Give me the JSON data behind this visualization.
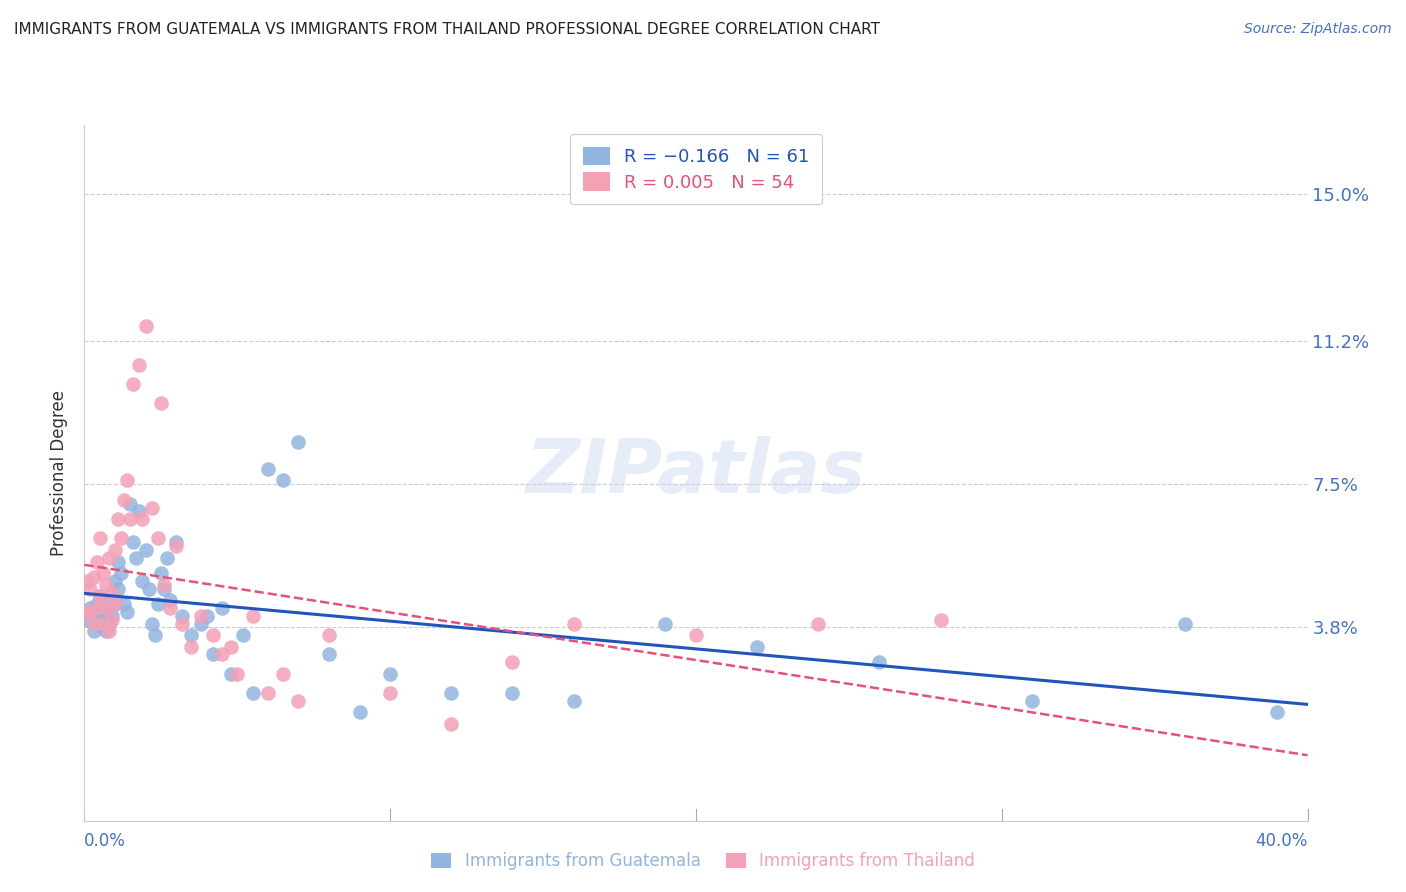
{
  "title": "IMMIGRANTS FROM GUATEMALA VS IMMIGRANTS FROM THAILAND PROFESSIONAL DEGREE CORRELATION CHART",
  "source": "Source: ZipAtlas.com",
  "ylabel": "Professional Degree",
  "ytick_labels": [
    "15.0%",
    "11.2%",
    "7.5%",
    "3.8%"
  ],
  "ytick_values": [
    0.15,
    0.112,
    0.075,
    0.038
  ],
  "xlim": [
    0.0,
    0.4
  ],
  "ylim": [
    -0.012,
    0.168
  ],
  "color_guatemala": "#92b4e0",
  "color_thailand": "#f4a0b5",
  "trendline_guatemala_color": "#2255bb",
  "trendline_thailand_color": "#e8507a",
  "watermark": "ZIPatlas",
  "guatemala_points_x": [
    0.001,
    0.002,
    0.003,
    0.003,
    0.004,
    0.004,
    0.005,
    0.005,
    0.006,
    0.006,
    0.007,
    0.007,
    0.007,
    0.008,
    0.009,
    0.01,
    0.01,
    0.011,
    0.011,
    0.012,
    0.013,
    0.014,
    0.015,
    0.016,
    0.017,
    0.018,
    0.019,
    0.02,
    0.021,
    0.022,
    0.023,
    0.024,
    0.025,
    0.026,
    0.027,
    0.028,
    0.03,
    0.032,
    0.035,
    0.038,
    0.04,
    0.042,
    0.045,
    0.048,
    0.052,
    0.055,
    0.06,
    0.065,
    0.07,
    0.08,
    0.09,
    0.1,
    0.12,
    0.14,
    0.16,
    0.19,
    0.22,
    0.26,
    0.31,
    0.36,
    0.39
  ],
  "guatemala_points_y": [
    0.04,
    0.043,
    0.041,
    0.037,
    0.044,
    0.039,
    0.046,
    0.041,
    0.043,
    0.038,
    0.045,
    0.041,
    0.037,
    0.039,
    0.041,
    0.05,
    0.044,
    0.055,
    0.048,
    0.052,
    0.044,
    0.042,
    0.07,
    0.06,
    0.056,
    0.068,
    0.05,
    0.058,
    0.048,
    0.039,
    0.036,
    0.044,
    0.052,
    0.048,
    0.056,
    0.045,
    0.06,
    0.041,
    0.036,
    0.039,
    0.041,
    0.031,
    0.043,
    0.026,
    0.036,
    0.021,
    0.079,
    0.076,
    0.086,
    0.031,
    0.016,
    0.026,
    0.021,
    0.021,
    0.019,
    0.039,
    0.033,
    0.029,
    0.019,
    0.039,
    0.016
  ],
  "thailand_points_x": [
    0.001,
    0.001,
    0.002,
    0.002,
    0.003,
    0.003,
    0.004,
    0.004,
    0.005,
    0.005,
    0.006,
    0.006,
    0.007,
    0.007,
    0.008,
    0.008,
    0.009,
    0.009,
    0.01,
    0.01,
    0.011,
    0.012,
    0.013,
    0.014,
    0.015,
    0.016,
    0.018,
    0.019,
    0.02,
    0.022,
    0.024,
    0.025,
    0.026,
    0.028,
    0.03,
    0.032,
    0.035,
    0.038,
    0.042,
    0.045,
    0.048,
    0.05,
    0.055,
    0.06,
    0.065,
    0.07,
    0.08,
    0.1,
    0.12,
    0.14,
    0.16,
    0.2,
    0.24,
    0.28
  ],
  "thailand_points_y": [
    0.042,
    0.05,
    0.048,
    0.042,
    0.051,
    0.039,
    0.055,
    0.043,
    0.061,
    0.046,
    0.052,
    0.039,
    0.049,
    0.043,
    0.037,
    0.056,
    0.047,
    0.04,
    0.058,
    0.044,
    0.066,
    0.061,
    0.071,
    0.076,
    0.066,
    0.101,
    0.106,
    0.066,
    0.116,
    0.069,
    0.061,
    0.096,
    0.049,
    0.043,
    0.059,
    0.039,
    0.033,
    0.041,
    0.036,
    0.031,
    0.033,
    0.026,
    0.041,
    0.021,
    0.026,
    0.019,
    0.036,
    0.021,
    0.013,
    0.029,
    0.039,
    0.036,
    0.039,
    0.04
  ],
  "title_color": "#222222",
  "source_color": "#4472c4",
  "axis_label_color": "#333333",
  "ytick_color": "#4472c4",
  "grid_color": "#cccccc",
  "legend_border_color": "#cccccc",
  "bottom_label_guatemala": "Immigrants from Guatemala",
  "bottom_label_thailand": "Immigrants from Thailand"
}
